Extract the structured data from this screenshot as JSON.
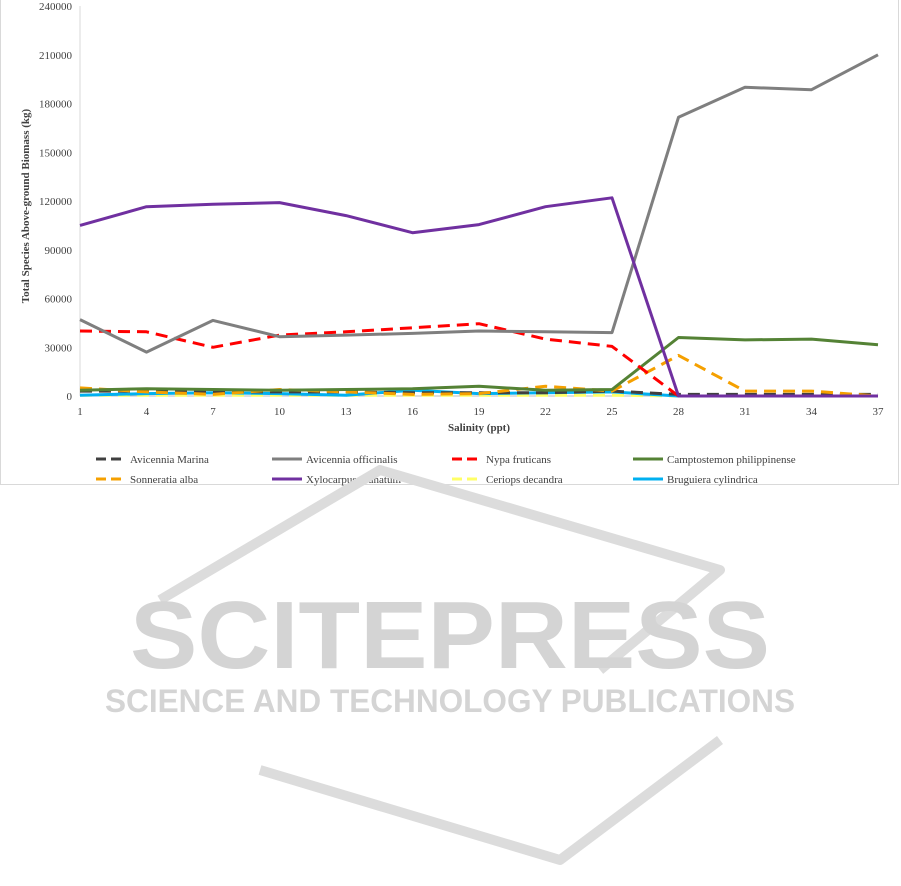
{
  "chart_data": {
    "type": "line",
    "title": "",
    "xlabel": "Salinity (ppt)",
    "ylabel": "Total Species Above-ground Biomass (kg)",
    "x": [
      1,
      4,
      7,
      10,
      13,
      16,
      19,
      22,
      25,
      28,
      31,
      34,
      37
    ],
    "ylim": [
      0,
      240000
    ],
    "yticks": [
      0,
      30000,
      60000,
      90000,
      120000,
      150000,
      180000,
      210000,
      240000
    ],
    "grid": false,
    "legend_position": "bottom",
    "series": [
      {
        "name": "Avicennia Marina",
        "color": "#404040",
        "dash": "dashed",
        "values": [
          3000,
          3000,
          2500,
          2500,
          2500,
          2000,
          2000,
          2000,
          3000,
          1000,
          1000,
          1000,
          1000
        ]
      },
      {
        "name": "Avicennia officinalis",
        "color": "#7f7f7f",
        "dash": "solid",
        "values": [
          47000,
          27000,
          46500,
          36500,
          37500,
          38500,
          40000,
          39500,
          39000,
          171500,
          190000,
          188500,
          210000
        ]
      },
      {
        "name": "Nypa fruticans",
        "color": "#ff0000",
        "dash": "dashed",
        "values": [
          40000,
          39500,
          30000,
          37500,
          39500,
          42000,
          44500,
          35000,
          30500,
          0,
          0,
          0,
          0
        ]
      },
      {
        "name": "Camptostemon philippinense",
        "color": "#548235",
        "dash": "solid",
        "values": [
          3500,
          4500,
          4000,
          3500,
          4000,
          4500,
          6000,
          3500,
          4000,
          36000,
          34500,
          35000,
          31500
        ]
      },
      {
        "name": "Sonneratia alba",
        "color": "#f5a000",
        "dash": "dashed",
        "values": [
          5000,
          2500,
          1000,
          4000,
          2500,
          1000,
          1500,
          6000,
          3000,
          25000,
          3000,
          3000,
          0
        ]
      },
      {
        "name": "Xylocarpus granatum",
        "color": "#7030a0",
        "dash": "solid",
        "values": [
          105000,
          116500,
          118000,
          119000,
          111000,
          100500,
          105500,
          116500,
          122000,
          0,
          0,
          0,
          0
        ]
      },
      {
        "name": "Ceriops decandra",
        "color": "#ffff66",
        "dash": "dashed",
        "values": [
          500,
          500,
          500,
          500,
          500,
          500,
          500,
          500,
          500,
          0,
          0,
          0,
          0
        ]
      },
      {
        "name": "Bruguiera cylindrica",
        "color": "#00b0f0",
        "dash": "solid",
        "values": [
          500,
          1500,
          2000,
          1500,
          500,
          3500,
          1500,
          2000,
          2500,
          0,
          0,
          0,
          0
        ]
      }
    ]
  },
  "watermark": {
    "main": "SCITEPRESS",
    "sub": "SCIENCE AND TECHNOLOGY PUBLICATIONS"
  }
}
